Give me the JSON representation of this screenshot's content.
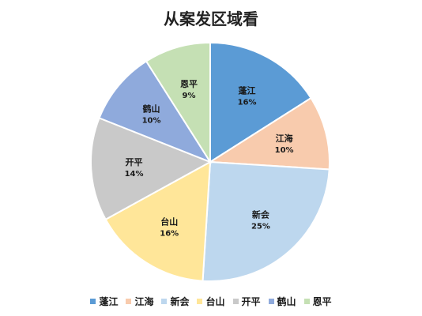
{
  "chart_data": {
    "type": "pie",
    "title": "从案发区域看",
    "categories": [
      "蓬江",
      "江海",
      "新会",
      "台山",
      "开平",
      "鹤山",
      "恩平"
    ],
    "values": [
      16,
      10,
      25,
      16,
      14,
      10,
      9
    ],
    "labels": [
      "16%",
      "10%",
      "25%",
      "16%",
      "14%",
      "10%",
      "9%"
    ],
    "colors": [
      "#5b9bd5",
      "#f8cbad",
      "#bdd7ee",
      "#ffe699",
      "#c9c9c9",
      "#8faadc",
      "#c5e0b4"
    ],
    "legend_position": "bottom"
  }
}
